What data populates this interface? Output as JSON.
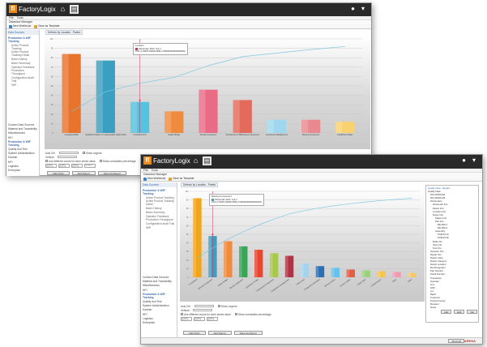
{
  "app": {
    "brand": "FactoryLogix",
    "home_icon": "home-icon",
    "report_icon": "report-icon",
    "user_icon": "user-icon"
  },
  "window1": {
    "menu": [
      "File",
      "Tools"
    ],
    "subheader": "Dataview Manager",
    "toolbar": {
      "new": "New Workbook",
      "template": "Save as Template"
    },
    "sidebar": {
      "header": "Data Sources",
      "active_category": "Production & WIP Tracking",
      "sub_items": [
        "Active Product Tracking",
        "Active Product Tracking Detail",
        "Batch History",
        "Batch Summary",
        "Operator Feedback",
        "Production Throughput",
        "Configuration Audit Trail",
        "WIP"
      ],
      "categories": [
        "Custom Data Sources",
        "Material and Traceability",
        "Miscellaneous",
        "NPI",
        "Production & WIP Tracking",
        "Quality and Test",
        "System Administration",
        "Kanban",
        "NPI",
        "Logistics",
        "Enterprise"
      ]
    },
    "chart_tab": "Defects by Location - Pareto",
    "tooltip": {
      "title": "Location",
      "label": "Workorder Path: Cat 1",
      "value": "0.81 (1=RRS-PERFORM-2.50000000000000000)"
    },
    "controls": {
      "x_label": "Axis Ctrl",
      "y_label": "Vertical",
      "show_legend": "Show Legend",
      "use_different_colors": "Use different colors for each series value",
      "show_cumulative": "Show cumulative percentage"
    },
    "slots": [
      "Quality Defects Location",
      "Quality Defects Product",
      "Quality Defects Count",
      "Group 1"
    ],
    "buttons": [
      "Add Chart",
      "Add Report",
      "Save As Report"
    ]
  },
  "window2": {
    "menu": [
      "File",
      "Tools"
    ],
    "subheader": "Dataview Manager",
    "toolbar": {
      "new": "New Workbook",
      "template": "Save as Template"
    },
    "sidebar": {
      "header": "Data Sources",
      "active_category": "Production & WIP Tracking",
      "sub_items": [
        "Active Product Tracking",
        "Active Product Tracking Detail",
        "Batch History",
        "Batch Summary",
        "Operator Feedback",
        "Production Throughput",
        "Configuration Audit Trail",
        "WIP"
      ],
      "categories": [
        "Custom Data Sources",
        "Material and Traceability",
        "Miscellaneous",
        "NPI",
        "Production & WIP Tracking",
        "Quality and Test",
        "System Administration",
        "Kanban",
        "NPI",
        "Logistics",
        "Enterprise"
      ]
    },
    "chart_tab": "Defects by Location - Pareto",
    "tooltip": {
      "title": "Missing Component",
      "label": "Workorder Path: Cat 1",
      "value": "0.81 (1=RRS-PERFORM-2.50000000000000000)"
    },
    "controls": {
      "x_label": "Axis Ctrl",
      "y_label": "Vertical",
      "show_legend": "Show Legend",
      "use_different_colors": "Use different colors for each series value",
      "show_cumulative": "Show cumulative percentage"
    },
    "slots": [
      "Quality Defects Location",
      "Quality Defects Product",
      "Quality Defects Count"
    ],
    "buttons": [
      "Add Chart",
      "Add Report",
      "Save As Report"
    ],
    "result_buttons": [
      "Add",
      "Edit",
      "Del"
    ],
    "tree_header": "Quality Data - Repairs",
    "tree": [
      "Quality Data",
      "WO-00451292",
      "WO-00451245",
      "Workorders",
      "Workorder Info",
      "Defect Info",
      "Location Info",
      "Route Info",
      "Station Info",
      "Part Info",
      "RD-000-1",
      "RD-000-2",
      "Assembly",
      "PCB-00-01",
      "PCB-00-02",
      "Build Info",
      "Step Info",
      "Test Info",
      "Operator Info",
      "Repair Info",
      "Defect Code",
      "Defect Category",
      "Defect Location",
      "Ref Designator",
      "Part Number",
      "Serial Number",
      "Timestamp",
      "Operator",
      "Line",
      "Shift",
      "Lot",
      "Batch",
      "Customer",
      "Product Family",
      "Revision",
      "Notes"
    ],
    "statusbar_btn": "Show All",
    "brand_footer": "ARENA"
  },
  "chart_data": [
    {
      "type": "bar",
      "title": "Defects by Location - Pareto",
      "categories": [
        "Unsoldered Ball",
        "Insufficient Solder or Unacceptable Solder Fillet",
        "Unsoldered Pin",
        "Solder Bridge",
        "Wrong Component",
        "Tombstoned or Billboarded Component",
        "Component Misalignment",
        "Missing Component",
        "Insufficient Solder"
      ],
      "values": [
        84,
        77,
        33,
        23,
        46,
        35,
        14,
        14,
        12
      ],
      "colors": [
        "#e8732a",
        "#3b9fc2",
        "#54c3df",
        "#f08a3c",
        "#ea6b86",
        "#e46a5c",
        "#9fd8ee",
        "#ea8890",
        "#f9d16e"
      ],
      "cumulative": [
        84,
        161,
        194,
        217,
        263,
        298,
        312,
        326,
        338
      ],
      "ylim": [
        0,
        100
      ]
    },
    {
      "type": "bar",
      "title": "Defects by Location - Pareto",
      "categories": [
        "Unsoldered",
        "Missing Component",
        "Solder Bridge",
        "Wrong Component",
        "Insufficient Solder",
        "Tombstoned Component",
        "Component Misalignment",
        "Lifted Lead",
        "Component Damaged",
        "Wrong Polarity",
        "Excess Solder",
        "Solder Balls",
        "Contamination",
        "Other",
        "Open"
      ],
      "values": [
        92,
        48,
        42,
        36,
        32,
        28,
        25,
        16,
        13,
        11,
        9,
        8,
        7,
        6,
        5
      ],
      "colors": [
        "#f2a51b",
        "#3b9fc2",
        "#f08a3c",
        "#3aa557",
        "#e8462e",
        "#a7c84a",
        "#b13244",
        "#a6d2ee",
        "#2a6fb4",
        "#66c2ea",
        "#e35c44",
        "#9ad07a",
        "#f6c64a",
        "#f09ab4",
        "#f7c86a"
      ],
      "cumulative": [
        92,
        140,
        182,
        218,
        250,
        278,
        303,
        319,
        332,
        343,
        352,
        360,
        367,
        373,
        378
      ],
      "ylim": [
        0,
        100
      ]
    }
  ]
}
